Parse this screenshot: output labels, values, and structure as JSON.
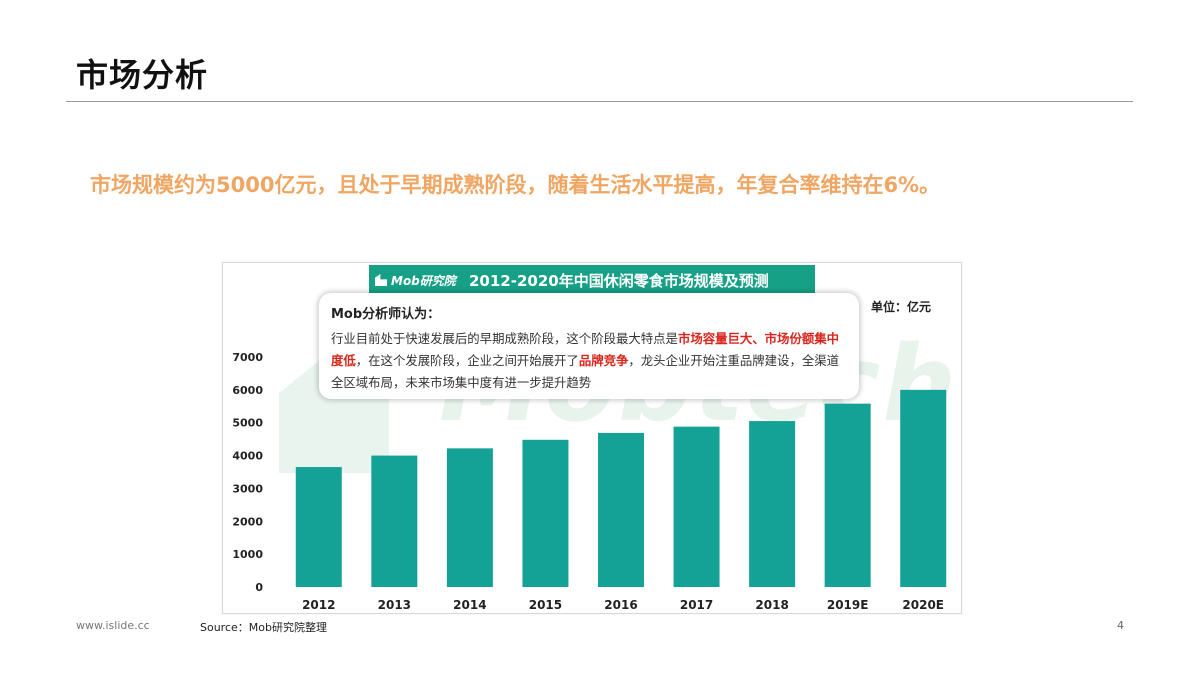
{
  "slide": {
    "title": "市场分析",
    "headline": "市场规模约为5000亿元，且处于早期成熟阶段，随着生活水平提高，年复合率维持在6%。"
  },
  "figure": {
    "banner_logo": "Mob研究院",
    "unit_label": "单位：亿元",
    "watermark": "Mobtech",
    "callout": {
      "title": "Mob分析师认为：",
      "seg1": "行业目前处于快速发展后的早期成熟阶段，这个阶段最大特点是",
      "hl1": "市场容量巨大、市场份额集中度低",
      "seg2": "，在这个发展阶段，企业之间开始展开了",
      "hl2": "品牌竞争",
      "seg3": "，龙头企业开始注重品牌建设，全渠道全区域布局，未来市场集中度有进一步提升趋势"
    }
  },
  "chart_data": {
    "type": "bar",
    "title": "2012-2020年中国休闲零食市场规模及预测",
    "categories": [
      "2012",
      "2013",
      "2014",
      "2015",
      "2016",
      "2017",
      "2018",
      "2019E",
      "2020E"
    ],
    "values": [
      3650,
      4000,
      4220,
      4480,
      4690,
      4880,
      5050,
      5580,
      6000
    ],
    "ylim": [
      0,
      7000
    ],
    "yticks": [
      0,
      1000,
      2000,
      3000,
      4000,
      5000,
      6000,
      7000
    ],
    "grid": false,
    "legend": "none",
    "bar_color": "#14a196"
  },
  "footer": {
    "site": "www.islide.cc",
    "source": "Source：Mob研究院整理",
    "page": "4"
  },
  "colors": {
    "headline": "#f0a663",
    "banner": "#16a086",
    "highlight": "#d9261c"
  }
}
